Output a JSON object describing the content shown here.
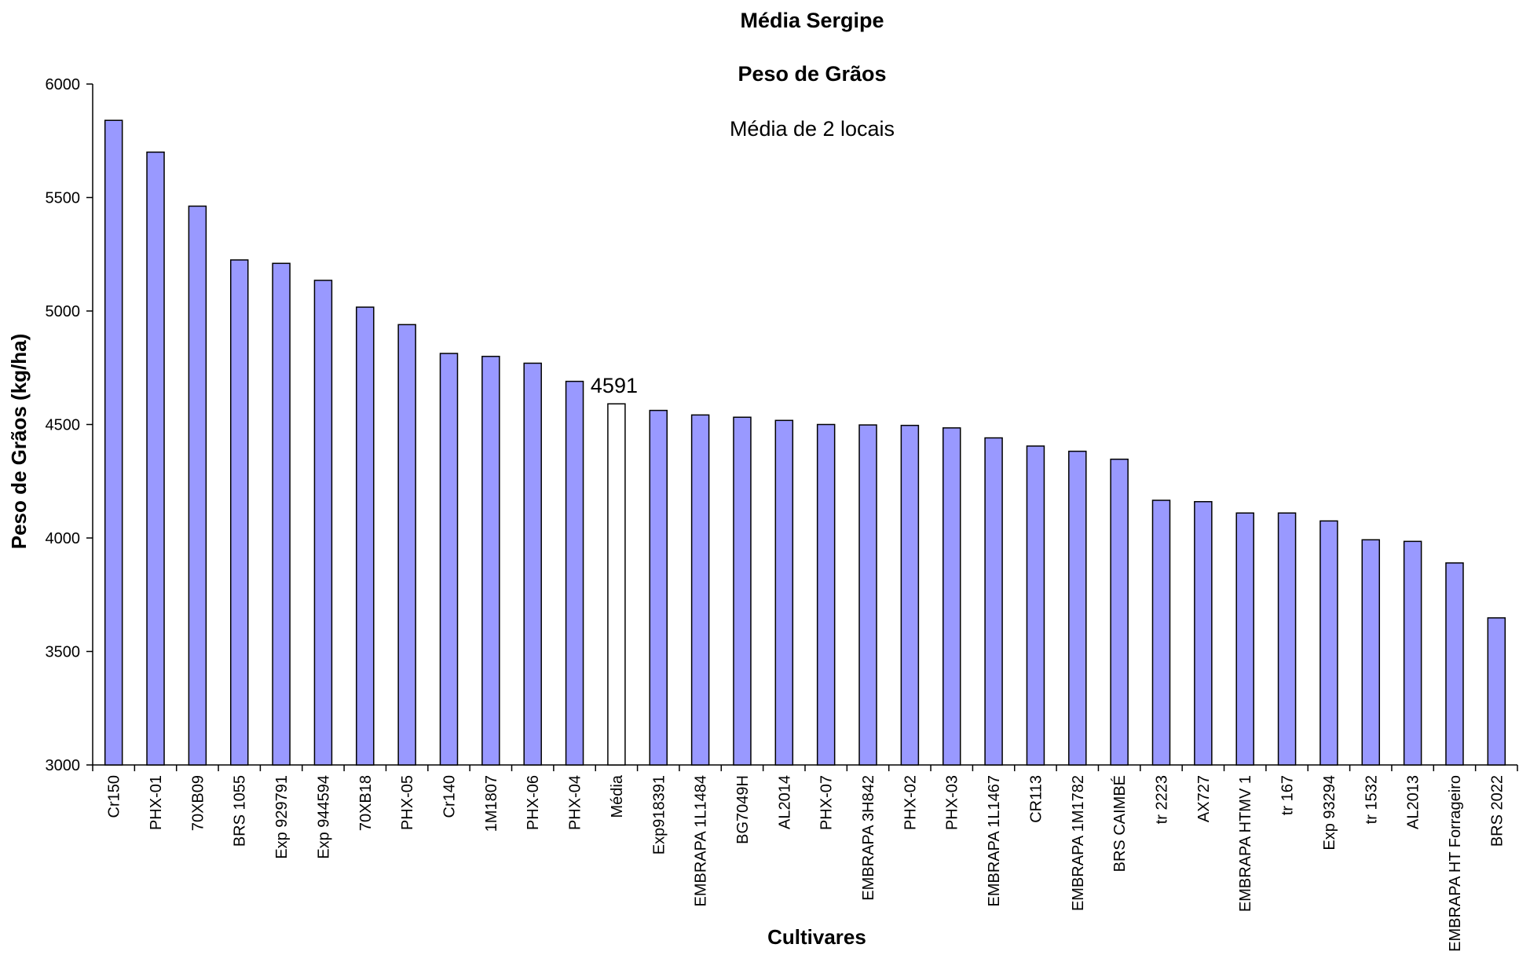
{
  "chart_data": {
    "type": "bar",
    "title": "Média Sergipe",
    "subtitle1": "Peso de Grãos",
    "subtitle2": "Média de 2 locais",
    "xlabel": "Cultivares",
    "ylabel": "Peso de Grãos (kg/ha)",
    "ylim": [
      3000,
      6000
    ],
    "yticks": [
      3000,
      3500,
      4000,
      4500,
      5000,
      5500,
      6000
    ],
    "grid": false,
    "legend": "none",
    "bar_color": "#9999FF",
    "highlight_color": "#FFFFFF",
    "highlight_category": "Média",
    "data_labels": [
      {
        "category": "Média",
        "text": "4591"
      }
    ],
    "categories": [
      "Cr150",
      "PHX-01",
      "70XB09",
      "BRS 1055",
      "Exp 929791",
      "Exp 944594",
      "70XB18",
      "PHX-05",
      "Cr140",
      "1M1807",
      "PHX-06",
      "PHX-04",
      "Média",
      "Exp918391",
      "EMBRAPA 1L1484",
      "BG7049H",
      "AL2014",
      "PHX-07",
      "EMBRAPA 3H842",
      "PHX-02",
      "PHX-03",
      "EMBRAPA 1L1467",
      "CR113",
      "EMBRAPA 1M1782",
      "BRS CAIMBÉ",
      "tr 2223",
      "AX727",
      "EMBRAPA HTMV 1",
      "tr 167",
      "Exp 93294",
      "tr 1532",
      "AL2013",
      "EMBRAPA HT Forrageiro",
      "BRS 2022"
    ],
    "values": [
      5840,
      5700,
      5462,
      5225,
      5210,
      5135,
      5017,
      4940,
      4813,
      4800,
      4770,
      4690,
      4591,
      4562,
      4542,
      4532,
      4518,
      4500,
      4498,
      4496,
      4485,
      4441,
      4405,
      4382,
      4347,
      4166,
      4160,
      4110,
      4110,
      4075,
      3992,
      3985,
      3890,
      3648
    ]
  }
}
